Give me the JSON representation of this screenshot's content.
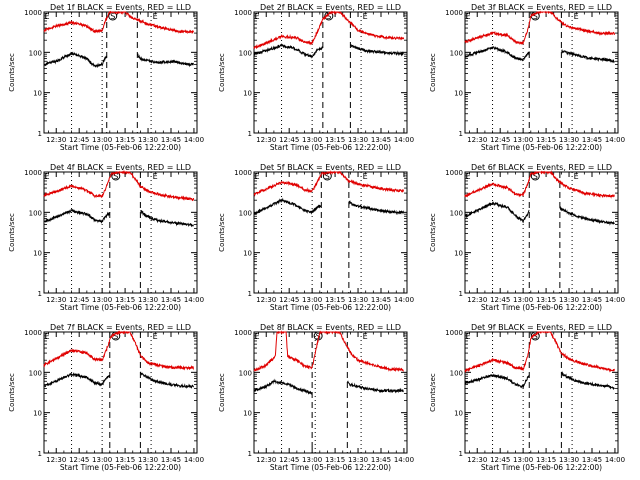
{
  "figure": {
    "background": "#ffffff"
  },
  "style": {
    "events_color": "#000000",
    "lld_color": "#e00000",
    "axis_color": "#000000"
  },
  "chart_data": [
    {
      "type": "line",
      "title": "Det 1f BLACK = Events, RED = LLD",
      "xlabel": "Start Time (05-Feb-06 12:22:00)",
      "ylabel": "Counts/sec",
      "xticks": [
        "12:30",
        "12:45",
        "13:00",
        "13:15",
        "13:30",
        "13:45",
        "14:00"
      ],
      "xlim": [
        "12:22",
        "14:02"
      ],
      "yscale": "log",
      "ylim": [
        1,
        1000
      ],
      "yticks": [
        1,
        10,
        100,
        1000
      ],
      "flags": [
        "E",
        "S",
        "E"
      ],
      "dashed_lines": [
        "13:03",
        "13:23"
      ],
      "dotted_lines": [
        "12:40",
        "13:00",
        "13:32"
      ],
      "series": [
        {
          "name": "Events",
          "color": "#000000",
          "x": [
            "12:22",
            "12:30",
            "12:40",
            "12:50",
            "12:55",
            "13:00",
            "13:02",
            "13:03",
            "13:23",
            "13:25",
            "13:35",
            "13:45",
            "13:55",
            "14:00"
          ],
          "y": [
            50,
            60,
            95,
            70,
            45,
            50,
            75,
            80,
            90,
            70,
            55,
            60,
            50,
            50
          ]
        },
        {
          "name": "LLD",
          "color": "#e00000",
          "x": [
            "12:22",
            "12:30",
            "12:40",
            "12:50",
            "12:55",
            "13:00",
            "13:02",
            "13:05",
            "13:10",
            "13:15",
            "13:20",
            "13:23",
            "13:25",
            "13:30",
            "13:40",
            "13:50",
            "14:00"
          ],
          "y": [
            350,
            450,
            550,
            450,
            330,
            350,
            600,
            1000,
            1000,
            1000,
            700,
            650,
            600,
            500,
            400,
            330,
            320
          ]
        }
      ]
    },
    {
      "type": "line",
      "title": "Det 2f BLACK = Events, RED = LLD",
      "xlabel": "Start Time (05-Feb-06 12:22:00)",
      "ylabel": "Counts/sec",
      "xticks": [
        "12:30",
        "12:45",
        "13:00",
        "13:15",
        "13:30",
        "13:45",
        "14:00"
      ],
      "xlim": [
        "12:22",
        "14:02"
      ],
      "yscale": "log",
      "ylim": [
        1,
        1000
      ],
      "yticks": [
        1,
        10,
        100,
        1000
      ],
      "flags": [
        "E",
        "S",
        "E"
      ],
      "dashed_lines": [
        "13:07",
        "13:25"
      ],
      "dotted_lines": [
        "12:40",
        "13:00",
        "13:32"
      ],
      "series": [
        {
          "name": "Events",
          "color": "#000000",
          "x": [
            "12:22",
            "12:30",
            "12:40",
            "12:50",
            "12:55",
            "13:00",
            "13:03",
            "13:07",
            "13:25",
            "13:28",
            "13:35",
            "13:45",
            "13:55",
            "14:00"
          ],
          "y": [
            90,
            110,
            150,
            120,
            90,
            80,
            110,
            130,
            150,
            130,
            110,
            100,
            95,
            90
          ]
        },
        {
          "name": "LLD",
          "color": "#e00000",
          "x": [
            "12:22",
            "12:30",
            "12:40",
            "12:50",
            "12:55",
            "13:00",
            "13:03",
            "13:07",
            "13:12",
            "13:18",
            "13:22",
            "13:25",
            "13:30",
            "13:40",
            "13:50",
            "14:00"
          ],
          "y": [
            130,
            170,
            250,
            230,
            180,
            170,
            300,
            650,
            1000,
            1000,
            700,
            550,
            350,
            260,
            230,
            220
          ]
        }
      ]
    },
    {
      "type": "line",
      "title": "Det 3f BLACK = Events, RED = LLD",
      "xlabel": "Start Time (05-Feb-06 12:22:00)",
      "ylabel": "Counts/sec",
      "xticks": [
        "12:30",
        "12:45",
        "13:00",
        "13:15",
        "13:30",
        "13:45",
        "14:00"
      ],
      "xlim": [
        "12:22",
        "14:02"
      ],
      "yscale": "log",
      "ylim": [
        1,
        1000
      ],
      "yticks": [
        1,
        10,
        100,
        1000
      ],
      "flags": [
        "E",
        "S",
        "E"
      ],
      "dashed_lines": [
        "13:04",
        "13:25"
      ],
      "dotted_lines": [
        "12:40",
        "13:00",
        "13:32"
      ],
      "series": [
        {
          "name": "Events",
          "color": "#000000",
          "x": [
            "12:22",
            "12:30",
            "12:40",
            "12:50",
            "12:55",
            "13:00",
            "13:03",
            "13:04",
            "13:25",
            "13:28",
            "13:35",
            "13:45",
            "13:55",
            "14:00"
          ],
          "y": [
            80,
            100,
            130,
            100,
            70,
            65,
            90,
            100,
            110,
            100,
            85,
            70,
            65,
            60
          ]
        },
        {
          "name": "LLD",
          "color": "#e00000",
          "x": [
            "12:22",
            "12:30",
            "12:40",
            "12:50",
            "12:55",
            "13:00",
            "13:03",
            "13:05",
            "13:10",
            "13:18",
            "13:22",
            "13:25",
            "13:30",
            "13:40",
            "13:50",
            "14:00"
          ],
          "y": [
            180,
            230,
            300,
            260,
            180,
            170,
            350,
            800,
            1000,
            1000,
            700,
            550,
            420,
            350,
            300,
            290
          ]
        }
      ]
    },
    {
      "type": "line",
      "title": "Det 4f BLACK = Events, RED = LLD",
      "xlabel": "Start Time (05-Feb-06 12:22:00)",
      "ylabel": "Counts/sec",
      "xticks": [
        "12:30",
        "12:45",
        "13:00",
        "13:15",
        "13:30",
        "13:45",
        "14:00"
      ],
      "xlim": [
        "12:22",
        "14:02"
      ],
      "yscale": "log",
      "ylim": [
        1,
        1000
      ],
      "yticks": [
        1,
        10,
        100,
        1000
      ],
      "flags": [
        "E",
        "S",
        "E"
      ],
      "dashed_lines": [
        "13:05",
        "13:25"
      ],
      "dotted_lines": [
        "12:40",
        "13:00",
        "13:32"
      ],
      "series": [
        {
          "name": "Events",
          "color": "#000000",
          "x": [
            "12:22",
            "12:30",
            "12:40",
            "12:50",
            "12:55",
            "13:00",
            "13:03",
            "13:05",
            "13:25",
            "13:28",
            "13:35",
            "13:45",
            "13:55",
            "14:00"
          ],
          "y": [
            60,
            75,
            110,
            90,
            65,
            60,
            85,
            95,
            110,
            85,
            65,
            55,
            50,
            48
          ]
        },
        {
          "name": "LLD",
          "color": "#e00000",
          "x": [
            "12:22",
            "12:30",
            "12:40",
            "12:50",
            "12:55",
            "13:00",
            "13:03",
            "13:06",
            "13:12",
            "13:18",
            "13:22",
            "13:25",
            "13:30",
            "13:40",
            "13:50",
            "14:00"
          ],
          "y": [
            260,
            330,
            450,
            350,
            260,
            250,
            450,
            900,
            1000,
            1000,
            650,
            450,
            330,
            260,
            230,
            210
          ]
        }
      ]
    },
    {
      "type": "line",
      "title": "Det 5f BLACK = Events, RED = LLD",
      "xlabel": "Start Time (05-Feb-06 12:22:00)",
      "ylabel": "Counts/sec",
      "xticks": [
        "12:30",
        "12:45",
        "13:00",
        "13:15",
        "13:30",
        "13:45",
        "14:00"
      ],
      "xlim": [
        "12:22",
        "14:02"
      ],
      "yscale": "log",
      "ylim": [
        1,
        1000
      ],
      "yticks": [
        1,
        10,
        100,
        1000
      ],
      "flags": [
        "E",
        "S",
        "E"
      ],
      "dashed_lines": [
        "13:06",
        "13:24"
      ],
      "dotted_lines": [
        "12:40",
        "13:00",
        "13:32"
      ],
      "series": [
        {
          "name": "Events",
          "color": "#000000",
          "x": [
            "12:22",
            "12:30",
            "12:40",
            "12:50",
            "12:55",
            "13:00",
            "13:03",
            "13:06",
            "13:24",
            "13:27",
            "13:35",
            "13:45",
            "13:55",
            "14:00"
          ],
          "y": [
            90,
            130,
            200,
            150,
            110,
            100,
            130,
            150,
            180,
            150,
            130,
            110,
            100,
            100
          ]
        },
        {
          "name": "LLD",
          "color": "#e00000",
          "x": [
            "12:22",
            "12:30",
            "12:40",
            "12:50",
            "12:55",
            "13:00",
            "13:03",
            "13:06",
            "13:12",
            "13:18",
            "13:22",
            "13:24",
            "13:30",
            "13:40",
            "13:50",
            "14:00"
          ],
          "y": [
            280,
            380,
            550,
            480,
            360,
            340,
            520,
            900,
            1000,
            1000,
            700,
            600,
            500,
            420,
            360,
            340
          ]
        }
      ]
    },
    {
      "type": "line",
      "title": "Det 6f BLACK = Events, RED = LLD",
      "xlabel": "Start Time (05-Feb-06 12:22:00)",
      "ylabel": "Counts/sec",
      "xticks": [
        "12:30",
        "12:45",
        "13:00",
        "13:15",
        "13:30",
        "13:45",
        "14:00"
      ],
      "xlim": [
        "12:22",
        "14:02"
      ],
      "yscale": "log",
      "ylim": [
        1,
        1000
      ],
      "yticks": [
        1,
        10,
        100,
        1000
      ],
      "flags": [
        "E",
        "S",
        "E"
      ],
      "dashed_lines": [
        "13:04",
        "13:24"
      ],
      "dotted_lines": [
        "12:40",
        "13:00",
        "13:32"
      ],
      "series": [
        {
          "name": "Events",
          "color": "#000000",
          "x": [
            "12:22",
            "12:30",
            "12:40",
            "12:50",
            "12:55",
            "13:00",
            "13:03",
            "13:04",
            "13:24",
            "13:27",
            "13:35",
            "13:45",
            "13:55",
            "14:00"
          ],
          "y": [
            80,
            110,
            170,
            130,
            80,
            60,
            90,
            110,
            130,
            110,
            80,
            65,
            55,
            55
          ]
        },
        {
          "name": "LLD",
          "color": "#e00000",
          "x": [
            "12:22",
            "12:30",
            "12:40",
            "12:50",
            "12:55",
            "13:00",
            "13:03",
            "13:05",
            "13:10",
            "13:18",
            "13:22",
            "13:24",
            "13:30",
            "13:40",
            "13:50",
            "14:00"
          ],
          "y": [
            250,
            350,
            500,
            400,
            280,
            270,
            500,
            900,
            1000,
            1000,
            650,
            550,
            400,
            300,
            260,
            250
          ]
        }
      ]
    },
    {
      "type": "line",
      "title": "Det 7f BLACK = Events, RED = LLD",
      "xlabel": "Start Time (05-Feb-06 12:22:00)",
      "ylabel": "Counts/sec",
      "xticks": [
        "12:30",
        "12:45",
        "13:00",
        "13:15",
        "13:30",
        "13:45",
        "14:00"
      ],
      "xlim": [
        "12:22",
        "14:02"
      ],
      "yscale": "log",
      "ylim": [
        1,
        1000
      ],
      "yticks": [
        1,
        10,
        100,
        1000
      ],
      "flags": [
        "E",
        "S",
        "E"
      ],
      "dashed_lines": [
        "13:05",
        "13:25"
      ],
      "dotted_lines": [
        "12:40",
        "13:00",
        "13:32"
      ],
      "series": [
        {
          "name": "Events",
          "color": "#000000",
          "x": [
            "12:22",
            "12:30",
            "12:40",
            "12:50",
            "12:55",
            "13:00",
            "13:03",
            "13:05",
            "13:25",
            "13:28",
            "13:35",
            "13:45",
            "13:55",
            "14:00"
          ],
          "y": [
            45,
            60,
            90,
            75,
            55,
            50,
            75,
            85,
            95,
            80,
            60,
            50,
            45,
            45
          ]
        },
        {
          "name": "LLD",
          "color": "#e00000",
          "x": [
            "12:22",
            "12:30",
            "12:40",
            "12:50",
            "12:55",
            "13:00",
            "13:03",
            "13:06",
            "13:12",
            "13:18",
            "13:22",
            "13:25",
            "13:30",
            "13:40",
            "13:50",
            "14:00"
          ],
          "y": [
            150,
            220,
            350,
            300,
            210,
            200,
            380,
            800,
            1000,
            1000,
            500,
            260,
            170,
            140,
            130,
            130
          ]
        }
      ]
    },
    {
      "type": "line",
      "title": "Det 8f BLACK = Events, RED = LLD",
      "xlabel": "Start Time (05-Feb-06 12:22:00)",
      "ylabel": "Counts/sec",
      "xticks": [
        "12:30",
        "12:45",
        "13:00",
        "13:15",
        "13:30",
        "13:45",
        "14:00"
      ],
      "xlim": [
        "12:22",
        "14:02"
      ],
      "yscale": "log",
      "ylim": [
        1,
        1000
      ],
      "yticks": [
        1,
        10,
        100,
        1000
      ],
      "flags": [
        "E",
        "S",
        "E"
      ],
      "dashed_lines": [
        "13:00",
        "13:23"
      ],
      "dotted_lines": [
        "12:40",
        "13:02",
        "13:32"
      ],
      "series": [
        {
          "name": "Events",
          "color": "#000000",
          "x": [
            "12:22",
            "12:30",
            "12:35",
            "12:40",
            "12:45",
            "12:50",
            "12:55",
            "13:00",
            "13:23",
            "13:25",
            "13:35",
            "13:45",
            "13:55",
            "14:00"
          ],
          "y": [
            35,
            45,
            60,
            55,
            50,
            40,
            35,
            30,
            60,
            50,
            40,
            35,
            35,
            35
          ]
        },
        {
          "name": "LLD",
          "color": "#e00000",
          "x": [
            "12:22",
            "12:30",
            "12:36",
            "12:37",
            "12:43",
            "12:44",
            "12:50",
            "12:55",
            "13:00",
            "13:05",
            "13:10",
            "13:18",
            "13:22",
            "13:25",
            "13:30",
            "13:40",
            "13:50",
            "14:00"
          ],
          "y": [
            110,
            150,
            250,
            1000,
            1000,
            250,
            200,
            140,
            130,
            1000,
            1000,
            1000,
            500,
            300,
            200,
            150,
            120,
            115
          ]
        }
      ]
    },
    {
      "type": "line",
      "title": "Det 9f BLACK = Events, RED = LLD",
      "xlabel": "Start Time (05-Feb-06 12:22:00)",
      "ylabel": "Counts/sec",
      "xticks": [
        "12:30",
        "12:45",
        "13:00",
        "13:15",
        "13:30",
        "13:45",
        "14:00"
      ],
      "xlim": [
        "12:22",
        "14:02"
      ],
      "yscale": "log",
      "ylim": [
        1,
        1000
      ],
      "yticks": [
        1,
        10,
        100,
        1000
      ],
      "flags": [
        "E",
        "S",
        "E"
      ],
      "dashed_lines": [
        "13:04",
        "13:25"
      ],
      "dotted_lines": [
        "12:40",
        "13:00",
        "13:32"
      ],
      "series": [
        {
          "name": "Events",
          "color": "#000000",
          "x": [
            "12:22",
            "12:30",
            "12:40",
            "12:50",
            "12:55",
            "13:00",
            "13:03",
            "13:04",
            "13:25",
            "13:28",
            "13:35",
            "13:45",
            "13:55",
            "14:00"
          ],
          "y": [
            55,
            65,
            85,
            70,
            50,
            45,
            75,
            85,
            95,
            80,
            60,
            50,
            45,
            40
          ]
        },
        {
          "name": "LLD",
          "color": "#e00000",
          "x": [
            "12:22",
            "12:30",
            "12:40",
            "12:50",
            "12:55",
            "13:00",
            "13:03",
            "13:05",
            "13:10",
            "13:18",
            "13:22",
            "13:25",
            "13:30",
            "13:40",
            "13:50",
            "14:00"
          ],
          "y": [
            110,
            140,
            200,
            170,
            130,
            120,
            250,
            700,
            1000,
            1000,
            500,
            300,
            210,
            160,
            130,
            110
          ]
        }
      ]
    }
  ]
}
